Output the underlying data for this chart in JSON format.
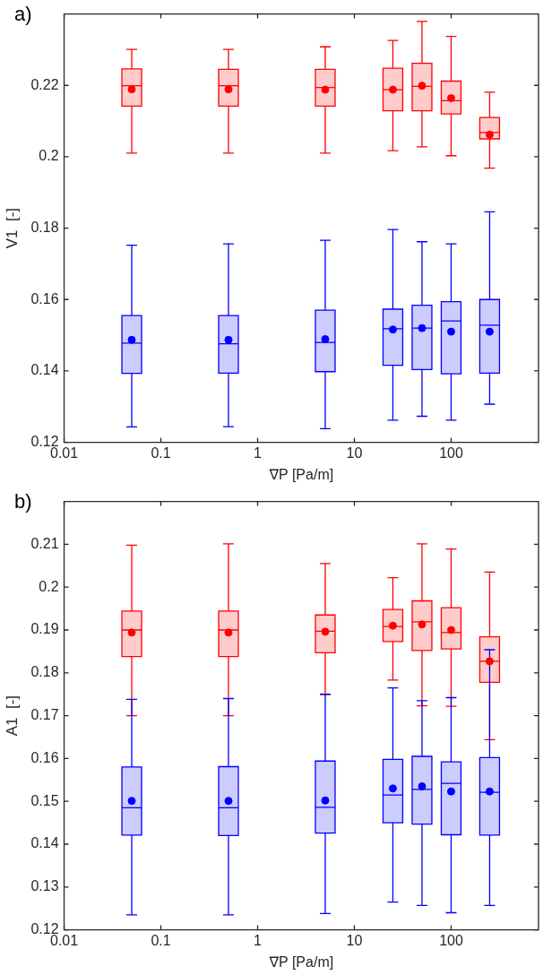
{
  "chart_data": [
    {
      "type": "box",
      "annotations": [
        "a)"
      ],
      "xlabel": "∇P [Pa/m]",
      "ylabel": "V1  [-]",
      "log": "x",
      "grid": false,
      "legend": false,
      "xlim": [
        0.01,
        800
      ],
      "xticks": [
        0.01,
        0.1,
        1,
        10,
        100
      ],
      "ylim": [
        0.12,
        0.24
      ],
      "yticks": [
        0.12,
        0.14,
        0.16,
        0.18,
        0.2,
        0.22
      ],
      "marker": "circle",
      "x": [
        0.05,
        0.5,
        5,
        25,
        50,
        100,
        250
      ],
      "series": [
        {
          "color": "#ff0000",
          "boxes": [
            {
              "low": 0.201,
              "q1": 0.2142,
              "median": 0.2199,
              "q3": 0.2246,
              "high": 0.2301,
              "mean": 0.2189
            },
            {
              "low": 0.201,
              "q1": 0.2142,
              "median": 0.2199,
              "q3": 0.2245,
              "high": 0.2301,
              "mean": 0.2189
            },
            {
              "low": 0.201,
              "q1": 0.2142,
              "median": 0.2194,
              "q3": 0.2245,
              "high": 0.2308,
              "mean": 0.2188
            },
            {
              "low": 0.2017,
              "q1": 0.2129,
              "median": 0.2188,
              "q3": 0.2248,
              "high": 0.2326,
              "mean": 0.2188
            },
            {
              "low": 0.2028,
              "q1": 0.2129,
              "median": 0.2197,
              "q3": 0.2262,
              "high": 0.2379,
              "mean": 0.2199
            },
            {
              "low": 0.2003,
              "q1": 0.212,
              "median": 0.2157,
              "q3": 0.2212,
              "high": 0.2337,
              "mean": 0.2164
            },
            {
              "low": 0.1968,
              "q1": 0.205,
              "median": 0.2068,
              "q3": 0.211,
              "high": 0.2181,
              "mean": 0.2062
            }
          ]
        },
        {
          "color": "#0000ff",
          "boxes": [
            {
              "low": 0.1243,
              "q1": 0.1393,
              "median": 0.1478,
              "q3": 0.1555,
              "high": 0.1752,
              "mean": 0.1487
            },
            {
              "low": 0.1244,
              "q1": 0.1394,
              "median": 0.1476,
              "q3": 0.1555,
              "high": 0.1756,
              "mean": 0.1487
            },
            {
              "low": 0.1238,
              "q1": 0.1398,
              "median": 0.148,
              "q3": 0.157,
              "high": 0.1766,
              "mean": 0.1489
            },
            {
              "low": 0.1262,
              "q1": 0.1416,
              "median": 0.1518,
              "q3": 0.1573,
              "high": 0.1796,
              "mean": 0.1516
            },
            {
              "low": 0.1273,
              "q1": 0.1404,
              "median": 0.152,
              "q3": 0.1584,
              "high": 0.1762,
              "mean": 0.152
            },
            {
              "low": 0.1262,
              "q1": 0.1392,
              "median": 0.154,
              "q3": 0.1594,
              "high": 0.1756,
              "mean": 0.151
            },
            {
              "low": 0.1307,
              "q1": 0.1394,
              "median": 0.1528,
              "q3": 0.16,
              "high": 0.1846,
              "mean": 0.151
            }
          ]
        }
      ]
    },
    {
      "type": "box",
      "annotations": [
        "b)"
      ],
      "xlabel": "∇P [Pa/m]",
      "ylabel": "A1  [-]",
      "log": "x",
      "grid": false,
      "legend": false,
      "xlim": [
        0.01,
        800
      ],
      "xticks": [
        0.01,
        0.1,
        1,
        10,
        100
      ],
      "ylim": [
        0.12,
        0.22
      ],
      "yticks": [
        0.12,
        0.13,
        0.14,
        0.15,
        0.16,
        0.17,
        0.18,
        0.19,
        0.2,
        0.21
      ],
      "marker": "circle",
      "x": [
        0.05,
        0.5,
        5,
        25,
        50,
        100,
        250
      ],
      "series": [
        {
          "color": "#ff0000",
          "boxes": [
            {
              "low": 0.17,
              "q1": 0.1838,
              "median": 0.19,
              "q3": 0.1944,
              "high": 0.2098,
              "mean": 0.1894
            },
            {
              "low": 0.17,
              "q1": 0.1838,
              "median": 0.19,
              "q3": 0.1944,
              "high": 0.2101,
              "mean": 0.1894
            },
            {
              "low": 0.1749,
              "q1": 0.1847,
              "median": 0.1897,
              "q3": 0.1935,
              "high": 0.2055,
              "mean": 0.1896
            },
            {
              "low": 0.1783,
              "q1": 0.1873,
              "median": 0.1908,
              "q3": 0.1948,
              "high": 0.2022,
              "mean": 0.191
            },
            {
              "low": 0.1723,
              "q1": 0.1852,
              "median": 0.1919,
              "q3": 0.1968,
              "high": 0.2101,
              "mean": 0.1913
            },
            {
              "low": 0.1722,
              "q1": 0.1856,
              "median": 0.1894,
              "q3": 0.1952,
              "high": 0.2089,
              "mean": 0.19
            },
            {
              "low": 0.1644,
              "q1": 0.1778,
              "median": 0.1827,
              "q3": 0.1884,
              "high": 0.2035,
              "mean": 0.1827
            }
          ]
        },
        {
          "color": "#0000ff",
          "boxes": [
            {
              "low": 0.1235,
              "q1": 0.1421,
              "median": 0.1485,
              "q3": 0.158,
              "high": 0.1738,
              "mean": 0.1501
            },
            {
              "low": 0.1235,
              "q1": 0.142,
              "median": 0.1485,
              "q3": 0.1581,
              "high": 0.174,
              "mean": 0.1501
            },
            {
              "low": 0.1238,
              "q1": 0.1426,
              "median": 0.1486,
              "q3": 0.1594,
              "high": 0.175,
              "mean": 0.1502
            },
            {
              "low": 0.1265,
              "q1": 0.145,
              "median": 0.1515,
              "q3": 0.1598,
              "high": 0.1765,
              "mean": 0.153
            },
            {
              "low": 0.1257,
              "q1": 0.1447,
              "median": 0.1528,
              "q3": 0.1605,
              "high": 0.1735,
              "mean": 0.1535
            },
            {
              "low": 0.124,
              "q1": 0.1422,
              "median": 0.1542,
              "q3": 0.1592,
              "high": 0.1742,
              "mean": 0.1523
            },
            {
              "low": 0.1257,
              "q1": 0.1421,
              "median": 0.1521,
              "q3": 0.1602,
              "high": 0.1854,
              "mean": 0.1523
            }
          ]
        }
      ]
    }
  ]
}
